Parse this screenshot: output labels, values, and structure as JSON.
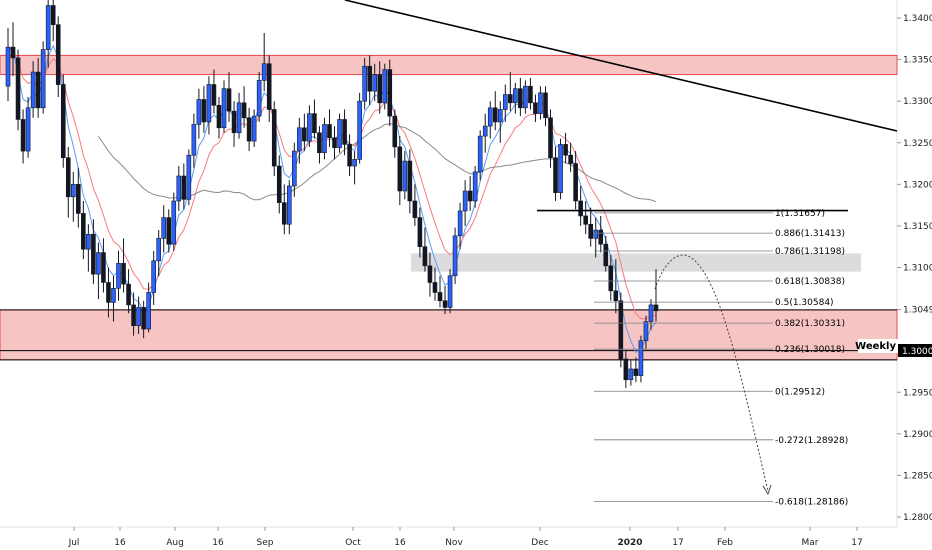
{
  "chart_data": {
    "type": "candlestick",
    "price_axis": {
      "ticks": [
        "1.34000",
        "1.33500",
        "1.33000",
        "1.32500",
        "1.32000",
        "1.31500",
        "1.31000",
        "1.30495",
        "1.29500",
        "1.29000",
        "1.28500",
        "1.28000"
      ],
      "ylim": [
        1.2778,
        1.344
      ]
    },
    "time_axis": {
      "ticks": [
        "Jul",
        "16",
        "Aug",
        "16",
        "Sep",
        "Oct",
        "16",
        "Nov",
        "Dec",
        "2020",
        "17",
        "Feb",
        "Mar",
        "17"
      ]
    },
    "badges": {
      "weekly_label": "Weekly",
      "price_label": "1.30000"
    },
    "zones": [
      {
        "type": "resistance",
        "from": 1.3332,
        "to": 1.3355,
        "color": "#f7c4c4"
      },
      {
        "type": "support",
        "from": 1.2989,
        "to": 1.3049,
        "color": "#f7c4c4"
      },
      {
        "type": "consolidation",
        "from": 1.3095,
        "to": 1.3117,
        "color": "#dcdcde"
      }
    ],
    "horizontal_levels": [
      1.3049,
      1.3,
      1.2989
    ],
    "fibonacci": [
      {
        "label": "1(1.31657)",
        "value": 1.31657
      },
      {
        "label": "0.886(1.31413)",
        "value": 1.31413
      },
      {
        "label": "0.786(1.31198)",
        "value": 1.31198
      },
      {
        "label": "0.618(1.30838)",
        "value": 1.30838
      },
      {
        "label": "0.5(1.30584)",
        "value": 1.30584
      },
      {
        "label": "0.382(1.30331)",
        "value": 1.30331
      },
      {
        "label": "0.236(1.30018)",
        "value": 1.30018
      },
      {
        "label": "0(1.29512)",
        "value": 1.29512
      },
      {
        "label": "-0.272(1.28928)",
        "value": 1.28928
      },
      {
        "label": "-0.618(1.28186)",
        "value": 1.28186
      }
    ],
    "candles": [
      [
        1.3318,
        1.3388,
        1.33,
        1.3365
      ],
      [
        1.3365,
        1.3395,
        1.333,
        1.3352
      ],
      [
        1.3352,
        1.3362,
        1.3265,
        1.3278
      ],
      [
        1.3278,
        1.329,
        1.3225,
        1.324
      ],
      [
        1.324,
        1.3305,
        1.3232,
        1.3292
      ],
      [
        1.3292,
        1.3348,
        1.328,
        1.3335
      ],
      [
        1.3335,
        1.3352,
        1.328,
        1.3292
      ],
      [
        1.3292,
        1.3372,
        1.3285,
        1.3362
      ],
      [
        1.3362,
        1.343,
        1.334,
        1.3415
      ],
      [
        1.3415,
        1.3438,
        1.3372,
        1.3392
      ],
      [
        1.3392,
        1.3402,
        1.3305,
        1.332
      ],
      [
        1.332,
        1.3332,
        1.322,
        1.3232
      ],
      [
        1.3232,
        1.3245,
        1.316,
        1.3185
      ],
      [
        1.3185,
        1.3215,
        1.3155,
        1.32
      ],
      [
        1.32,
        1.322,
        1.3148,
        1.3165
      ],
      [
        1.3165,
        1.318,
        1.311,
        1.3122
      ],
      [
        1.3122,
        1.3152,
        1.3095,
        1.314
      ],
      [
        1.314,
        1.3158,
        1.308,
        1.3092
      ],
      [
        1.3092,
        1.313,
        1.3062,
        1.3118
      ],
      [
        1.3118,
        1.3135,
        1.307,
        1.3082
      ],
      [
        1.3082,
        1.31,
        1.304,
        1.3058
      ],
      [
        1.3058,
        1.309,
        1.3035,
        1.3075
      ],
      [
        1.3075,
        1.312,
        1.306,
        1.3105
      ],
      [
        1.3105,
        1.3135,
        1.307,
        1.308
      ],
      [
        1.308,
        1.3098,
        1.3045,
        1.3055
      ],
      [
        1.3055,
        1.307,
        1.3018,
        1.303
      ],
      [
        1.303,
        1.3065,
        1.302,
        1.3052
      ],
      [
        1.3052,
        1.306,
        1.3015,
        1.3026
      ],
      [
        1.3026,
        1.3082,
        1.3022,
        1.307
      ],
      [
        1.307,
        1.312,
        1.3055,
        1.3108
      ],
      [
        1.3108,
        1.3145,
        1.309,
        1.3135
      ],
      [
        1.3135,
        1.3175,
        1.3118,
        1.316
      ],
      [
        1.316,
        1.317,
        1.3118,
        1.3128
      ],
      [
        1.3128,
        1.319,
        1.312,
        1.318
      ],
      [
        1.318,
        1.3222,
        1.3168,
        1.321
      ],
      [
        1.321,
        1.3225,
        1.317,
        1.3182
      ],
      [
        1.3182,
        1.3242,
        1.3175,
        1.3235
      ],
      [
        1.3235,
        1.3285,
        1.322,
        1.3272
      ],
      [
        1.3272,
        1.3315,
        1.3255,
        1.3302
      ],
      [
        1.3302,
        1.3318,
        1.3262,
        1.3275
      ],
      [
        1.3275,
        1.333,
        1.326,
        1.332
      ],
      [
        1.332,
        1.3338,
        1.3285,
        1.3295
      ],
      [
        1.3295,
        1.3305,
        1.3255,
        1.3268
      ],
      [
        1.3268,
        1.3325,
        1.3262,
        1.3315
      ],
      [
        1.3315,
        1.3335,
        1.3275,
        1.3288
      ],
      [
        1.3288,
        1.33,
        1.3245,
        1.3262
      ],
      [
        1.3262,
        1.331,
        1.3255,
        1.3298
      ],
      [
        1.3298,
        1.3318,
        1.3268,
        1.328
      ],
      [
        1.328,
        1.3292,
        1.324,
        1.3252
      ],
      [
        1.3252,
        1.329,
        1.3245,
        1.3282
      ],
      [
        1.3282,
        1.3335,
        1.3275,
        1.3325
      ],
      [
        1.3325,
        1.3382,
        1.3312,
        1.3345
      ],
      [
        1.3345,
        1.3355,
        1.3275,
        1.329
      ],
      [
        1.329,
        1.33,
        1.321,
        1.3222
      ],
      [
        1.3222,
        1.3235,
        1.3165,
        1.3178
      ],
      [
        1.3178,
        1.32,
        1.314,
        1.3152
      ],
      [
        1.3152,
        1.3205,
        1.314,
        1.3198
      ],
      [
        1.3198,
        1.325,
        1.3185,
        1.324
      ],
      [
        1.324,
        1.328,
        1.3225,
        1.3268
      ],
      [
        1.3268,
        1.3285,
        1.324,
        1.3252
      ],
      [
        1.3252,
        1.3295,
        1.3245,
        1.3285
      ],
      [
        1.3285,
        1.3302,
        1.3255,
        1.3262
      ],
      [
        1.3262,
        1.327,
        1.3225,
        1.3238
      ],
      [
        1.3238,
        1.328,
        1.323,
        1.3272
      ],
      [
        1.3272,
        1.329,
        1.3245,
        1.3256
      ],
      [
        1.3256,
        1.327,
        1.323,
        1.3244
      ],
      [
        1.3244,
        1.3285,
        1.3238,
        1.3278
      ],
      [
        1.3278,
        1.329,
        1.3235,
        1.3248
      ],
      [
        1.3248,
        1.326,
        1.321,
        1.3222
      ],
      [
        1.3222,
        1.324,
        1.32,
        1.323
      ],
      [
        1.323,
        1.331,
        1.3225,
        1.33
      ],
      [
        1.33,
        1.3352,
        1.329,
        1.3342
      ],
      [
        1.3342,
        1.3355,
        1.3295,
        1.3312
      ],
      [
        1.3312,
        1.3345,
        1.33,
        1.3332
      ],
      [
        1.3332,
        1.3348,
        1.3285,
        1.3298
      ],
      [
        1.3298,
        1.3345,
        1.329,
        1.3338
      ],
      [
        1.3338,
        1.335,
        1.327,
        1.3282
      ],
      [
        1.3282,
        1.329,
        1.3232,
        1.3245
      ],
      [
        1.3245,
        1.3258,
        1.3175,
        1.3192
      ],
      [
        1.3192,
        1.324,
        1.3182,
        1.3228
      ],
      [
        1.3228,
        1.3242,
        1.3165,
        1.318
      ],
      [
        1.318,
        1.32,
        1.315,
        1.316
      ],
      [
        1.316,
        1.3172,
        1.3112,
        1.3125
      ],
      [
        1.3125,
        1.3148,
        1.3095,
        1.3102
      ],
      [
        1.3102,
        1.3118,
        1.3065,
        1.3082
      ],
      [
        1.3082,
        1.31,
        1.306,
        1.307
      ],
      [
        1.307,
        1.309,
        1.3052,
        1.306
      ],
      [
        1.306,
        1.3078,
        1.3044,
        1.3052
      ],
      [
        1.3052,
        1.3098,
        1.3045,
        1.309
      ],
      [
        1.309,
        1.3148,
        1.308,
        1.3138
      ],
      [
        1.3138,
        1.3178,
        1.3122,
        1.3168
      ],
      [
        1.3168,
        1.3205,
        1.315,
        1.3192
      ],
      [
        1.3192,
        1.321,
        1.3168,
        1.318
      ],
      [
        1.318,
        1.3222,
        1.3172,
        1.3215
      ],
      [
        1.3215,
        1.3265,
        1.3205,
        1.3258
      ],
      [
        1.3258,
        1.3285,
        1.3238,
        1.327
      ],
      [
        1.327,
        1.33,
        1.3255,
        1.3292
      ],
      [
        1.3292,
        1.3312,
        1.3265,
        1.3275
      ],
      [
        1.3275,
        1.33,
        1.325,
        1.329
      ],
      [
        1.329,
        1.332,
        1.3275,
        1.3308
      ],
      [
        1.3308,
        1.3335,
        1.3288,
        1.3298
      ],
      [
        1.3298,
        1.3322,
        1.3285,
        1.3315
      ],
      [
        1.3315,
        1.3328,
        1.3282,
        1.3292
      ],
      [
        1.3292,
        1.3325,
        1.3285,
        1.3318
      ],
      [
        1.3318,
        1.3328,
        1.329,
        1.3298
      ],
      [
        1.3298,
        1.3308,
        1.3275,
        1.3285
      ],
      [
        1.3285,
        1.3318,
        1.3278,
        1.331
      ],
      [
        1.331,
        1.3318,
        1.327,
        1.328
      ],
      [
        1.328,
        1.329,
        1.322,
        1.3232
      ],
      [
        1.3232,
        1.3245,
        1.318,
        1.319
      ],
      [
        1.319,
        1.3255,
        1.3182,
        1.3248
      ],
      [
        1.3248,
        1.3262,
        1.3225,
        1.3235
      ],
      [
        1.3235,
        1.325,
        1.3215,
        1.3225
      ],
      [
        1.3225,
        1.324,
        1.317,
        1.318
      ],
      [
        1.318,
        1.3198,
        1.315,
        1.3162
      ],
      [
        1.3162,
        1.318,
        1.314,
        1.3152
      ],
      [
        1.3152,
        1.3172,
        1.3125,
        1.3135
      ],
      [
        1.3135,
        1.316,
        1.3112,
        1.3145
      ],
      [
        1.3145,
        1.3162,
        1.3118,
        1.3128
      ],
      [
        1.3128,
        1.3138,
        1.3095,
        1.3102
      ],
      [
        1.3102,
        1.3115,
        1.306,
        1.3072
      ],
      [
        1.3072,
        1.311,
        1.3045,
        1.306
      ],
      [
        1.306,
        1.307,
        1.298,
        1.299
      ],
      [
        1.299,
        1.3,
        1.2955,
        1.2965
      ],
      [
        1.2965,
        1.2988,
        1.2958,
        1.2978
      ],
      [
        1.2978,
        1.2992,
        1.2962,
        1.297
      ],
      [
        1.297,
        1.3018,
        1.2962,
        1.3012
      ],
      [
        1.3012,
        1.3042,
        1.3002,
        1.3035
      ],
      [
        1.3035,
        1.3062,
        1.3025,
        1.3055
      ],
      [
        1.3055,
        1.3098,
        1.3035,
        1.3048
      ]
    ],
    "moving_averages": [
      "ema-fast",
      "ema-slow",
      "sma-200"
    ]
  }
}
